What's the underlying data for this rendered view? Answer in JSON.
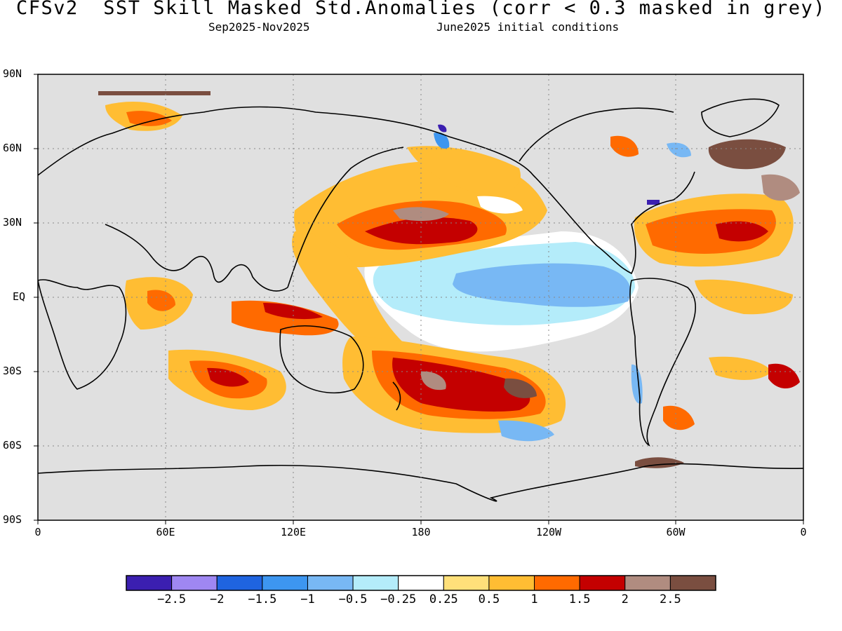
{
  "title": "CFSv2  SST Skill Masked Std.Anomalies (corr < 0.3 masked in grey)",
  "subtitle_left": "Sep2025-Nov2025",
  "subtitle_right": "June2025 initial conditions",
  "map": {
    "projection": "equirectangular",
    "lon_range": [
      0,
      360
    ],
    "lat_range": [
      -90,
      90
    ],
    "mask_color": "#e0e0e0",
    "grid": "dotted",
    "y_ticks": [
      "90N",
      "60N",
      "30N",
      "EQ",
      "30S",
      "60S",
      "90S"
    ],
    "x_ticks": [
      "0",
      "60E",
      "120E",
      "180",
      "120W",
      "60W",
      "0"
    ]
  },
  "legend": {
    "colors": [
      "#3b1fb0",
      "#9f87f2",
      "#1f64e0",
      "#3d96f0",
      "#78b8f4",
      "#b4ecfa",
      "#ffffff",
      "#ffe07a",
      "#ffbd33",
      "#ff6a00",
      "#c40000",
      "#b08c80",
      "#7a4e40"
    ],
    "labels": [
      "-2.5",
      "-2",
      "-1.5",
      "-1",
      "-0.5",
      "-0.25",
      "0.25",
      "0.5",
      "1",
      "1.5",
      "2",
      "2.5"
    ]
  }
}
